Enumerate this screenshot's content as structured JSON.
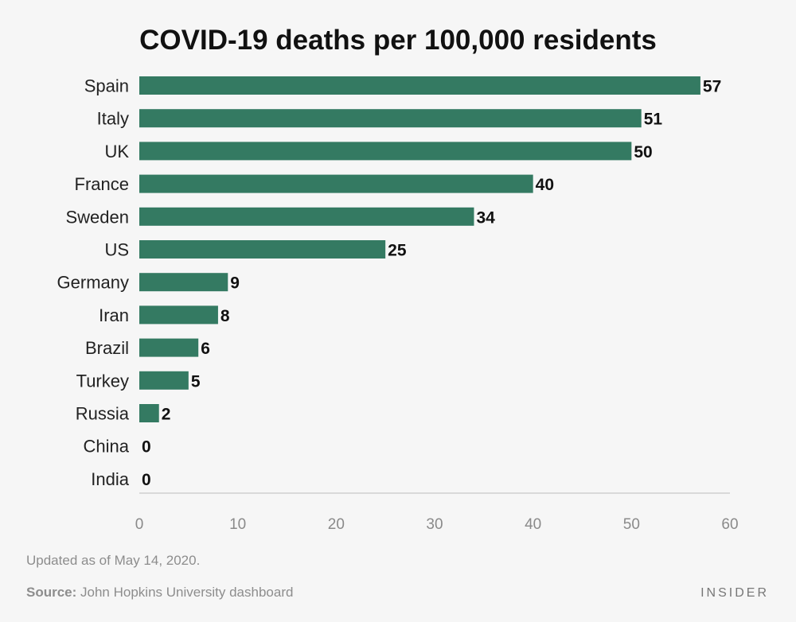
{
  "chart_data": {
    "type": "bar",
    "orientation": "horizontal",
    "title": "COVID-19 deaths per 100,000 residents",
    "categories": [
      "Spain",
      "Italy",
      "UK",
      "France",
      "Sweden",
      "US",
      "Germany",
      "Iran",
      "Brazil",
      "Turkey",
      "Russia",
      "China",
      "India"
    ],
    "values": [
      57,
      51,
      50,
      40,
      34,
      25,
      9,
      8,
      6,
      5,
      2,
      0,
      0
    ],
    "value_labels": [
      "57",
      "51",
      "50",
      "40",
      "34",
      "25",
      "9",
      "8",
      "6",
      "5",
      "2",
      "0",
      "0"
    ],
    "xlim": [
      0,
      60
    ],
    "xticks": [
      "0",
      "10",
      "20",
      "30",
      "40",
      "50",
      "60"
    ],
    "xlabel": "",
    "ylabel": "",
    "bar_color": "#347a62",
    "grid": false
  },
  "footer": {
    "updated": "Updated as of May 14, 2020.",
    "source_label": "Source:",
    "source_text": " John Hopkins University dashboard",
    "brand": "INSIDER"
  }
}
